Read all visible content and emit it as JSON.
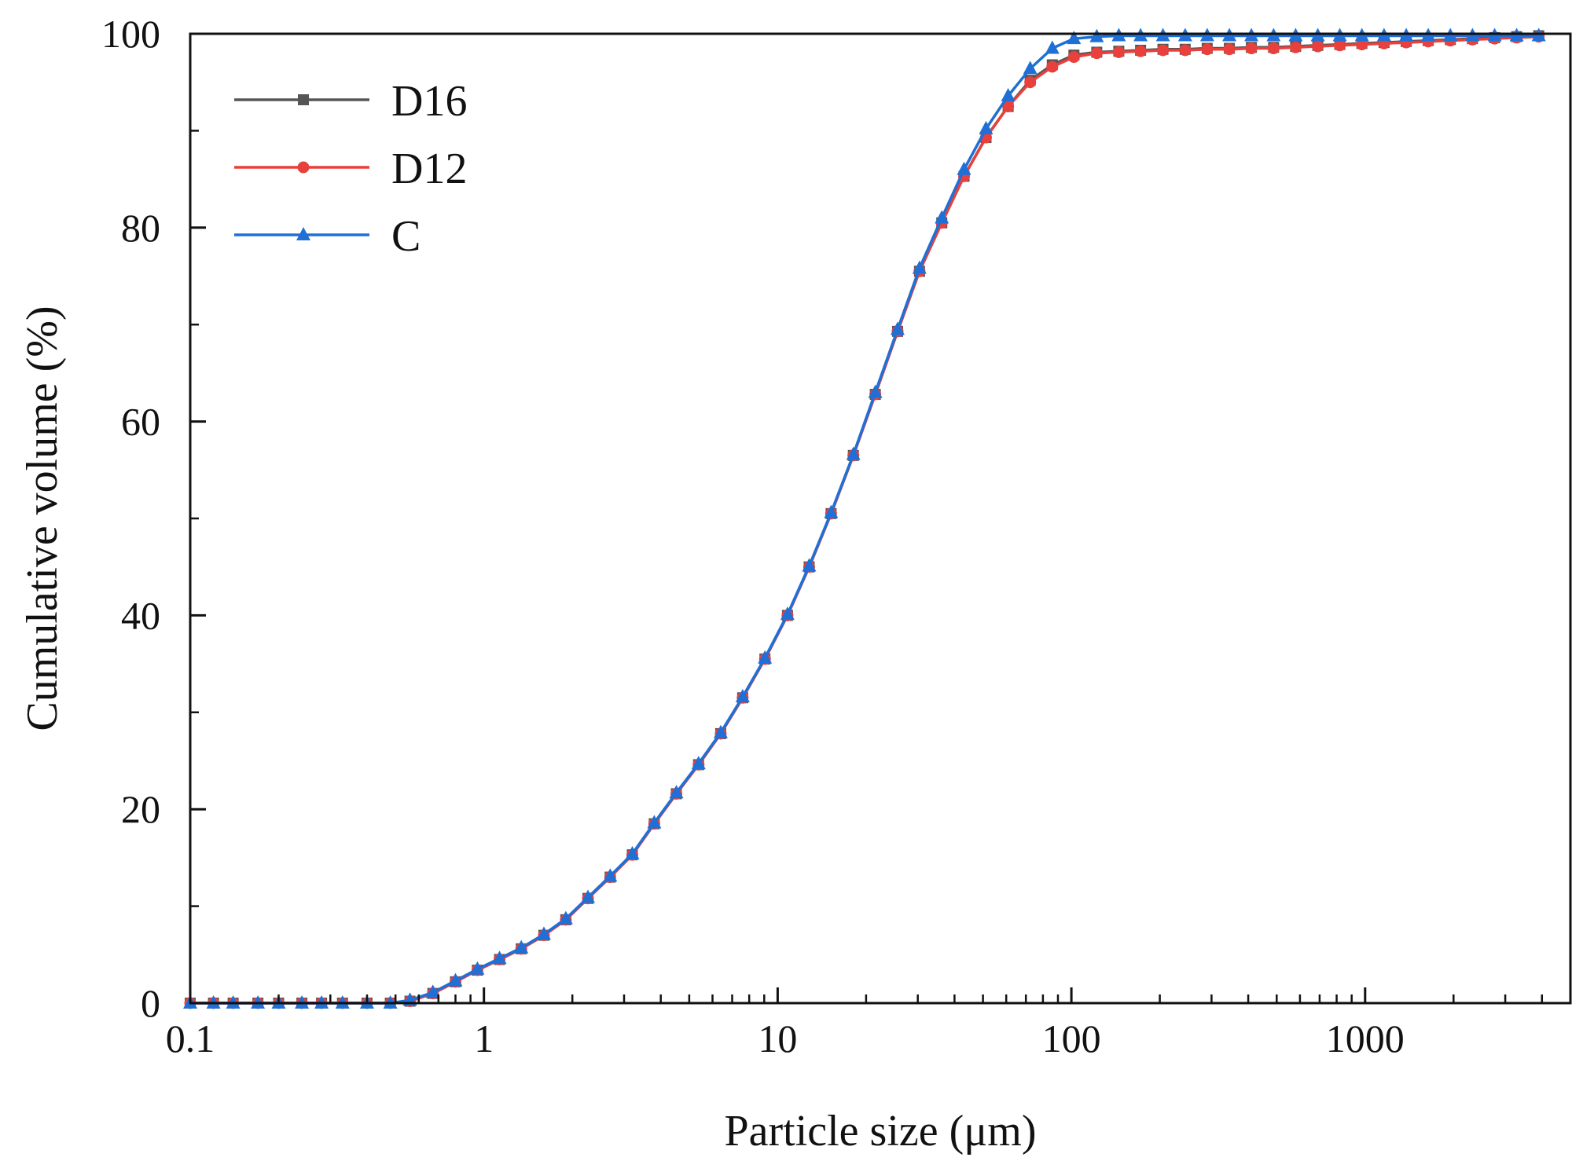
{
  "chart_data": {
    "type": "line",
    "title": "",
    "xlabel": "Particle size (μm)",
    "ylabel": "Cumulative volume (%)",
    "xscale": "log",
    "xlim": [
      0.1,
      5000
    ],
    "ylim": [
      0,
      100
    ],
    "x_ticks": [
      {
        "value": 0.1,
        "label": "0.1"
      },
      {
        "value": 1,
        "label": "1"
      },
      {
        "value": 10,
        "label": "10"
      },
      {
        "value": 100,
        "label": "100"
      },
      {
        "value": 1000,
        "label": "1000"
      }
    ],
    "y_ticks": [
      {
        "value": 0,
        "label": "0"
      },
      {
        "value": 20,
        "label": "20"
      },
      {
        "value": 40,
        "label": "40"
      },
      {
        "value": 60,
        "label": "60"
      },
      {
        "value": 80,
        "label": "80"
      },
      {
        "value": 100,
        "label": "100"
      }
    ],
    "legend_position": "top-left",
    "x": [
      0.1,
      0.12,
      0.14,
      0.17,
      0.2,
      0.24,
      0.28,
      0.33,
      0.4,
      0.48,
      0.56,
      0.67,
      0.8,
      0.95,
      1.13,
      1.34,
      1.6,
      1.9,
      2.26,
      2.69,
      3.2,
      3.8,
      4.52,
      5.38,
      6.4,
      7.6,
      9.05,
      10.8,
      12.8,
      15.2,
      18.1,
      21.5,
      25.6,
      30.4,
      36.2,
      43.1,
      51.2,
      60.9,
      72.4,
      86.1,
      102,
      122,
      145,
      172,
      205,
      244,
      290,
      345,
      410,
      488,
      580,
      690,
      820,
      975,
      1160,
      1380,
      1640,
      1950,
      2320,
      2760,
      3280,
      3900
    ],
    "series": [
      {
        "name": "D16",
        "color": "#555555",
        "marker": "square",
        "values": [
          0,
          0,
          0,
          0,
          0,
          0,
          0,
          0,
          0,
          0,
          0.2,
          1.0,
          2.2,
          3.4,
          4.5,
          5.6,
          7.0,
          8.6,
          10.8,
          13.0,
          15.3,
          18.5,
          21.6,
          24.6,
          27.8,
          31.5,
          35.5,
          40.0,
          45.0,
          50.5,
          56.5,
          62.8,
          69.3,
          75.5,
          80.5,
          85.3,
          89.3,
          92.5,
          95.2,
          96.8,
          97.8,
          98.1,
          98.2,
          98.3,
          98.4,
          98.4,
          98.5,
          98.5,
          98.6,
          98.6,
          98.7,
          98.8,
          98.9,
          99.0,
          99.1,
          99.2,
          99.3,
          99.4,
          99.5,
          99.6,
          99.7,
          99.8
        ]
      },
      {
        "name": "D12",
        "color": "#e8403c",
        "marker": "circle",
        "values": [
          0,
          0,
          0,
          0,
          0,
          0,
          0,
          0,
          0,
          0,
          0.2,
          1.0,
          2.2,
          3.4,
          4.5,
          5.6,
          7.0,
          8.6,
          10.8,
          13.0,
          15.3,
          18.5,
          21.6,
          24.6,
          27.8,
          31.5,
          35.5,
          40.0,
          45.0,
          50.5,
          56.5,
          62.8,
          69.3,
          75.5,
          80.5,
          85.3,
          89.3,
          92.5,
          95.0,
          96.6,
          97.6,
          98.0,
          98.1,
          98.2,
          98.3,
          98.3,
          98.4,
          98.4,
          98.5,
          98.5,
          98.6,
          98.7,
          98.8,
          98.9,
          99.0,
          99.1,
          99.2,
          99.3,
          99.4,
          99.5,
          99.6,
          99.7
        ]
      },
      {
        "name": "C",
        "color": "#1f6fd6",
        "marker": "triangle",
        "values": [
          0,
          0,
          0,
          0,
          0,
          0,
          0,
          0,
          0,
          0,
          0.3,
          1.1,
          2.3,
          3.5,
          4.6,
          5.7,
          7.1,
          8.7,
          10.9,
          13.1,
          15.4,
          18.6,
          21.7,
          24.7,
          27.9,
          31.6,
          35.6,
          40.1,
          45.1,
          50.6,
          56.6,
          63.0,
          69.5,
          75.8,
          81.0,
          86.0,
          90.2,
          93.6,
          96.4,
          98.5,
          99.5,
          99.7,
          99.8,
          99.8,
          99.8,
          99.8,
          99.8,
          99.8,
          99.8,
          99.8,
          99.8,
          99.8,
          99.8,
          99.8,
          99.8,
          99.8,
          99.8,
          99.8,
          99.8,
          99.8,
          99.8,
          99.8
        ]
      }
    ]
  }
}
